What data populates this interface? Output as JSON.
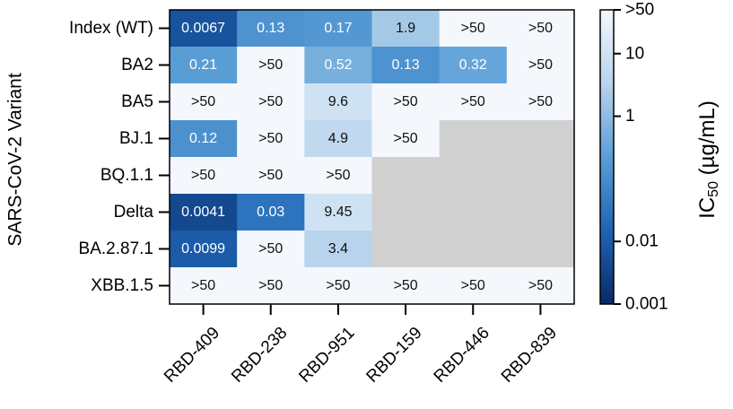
{
  "chart_data": {
    "type": "heatmap",
    "title": "",
    "ylabel": "SARS-CoV-2 Variant",
    "xlabel": "",
    "rows": [
      "Index (WT)",
      "BA2",
      "BA5",
      "BJ.1",
      "BQ.1.1",
      "Delta",
      "BA.2.87.1",
      "XBB.1.5"
    ],
    "columns": [
      "RBD-409",
      "RBD-238",
      "RBD-951",
      "RBD-159",
      "RBD-446",
      "RBD-839"
    ],
    "values": [
      [
        "0.0067",
        "0.13",
        "0.17",
        "1.9",
        ">50",
        ">50"
      ],
      [
        "0.21",
        ">50",
        "0.52",
        "0.13",
        "0.32",
        ">50"
      ],
      [
        ">50",
        ">50",
        "9.6",
        ">50",
        ">50",
        ">50"
      ],
      [
        "0.12",
        ">50",
        "4.9",
        ">50",
        null,
        null
      ],
      [
        ">50",
        ">50",
        ">50",
        null,
        null,
        null
      ],
      [
        "0.0041",
        "0.03",
        "9.45",
        null,
        null,
        null
      ],
      [
        "0.0099",
        ">50",
        "3.4",
        null,
        null,
        null
      ],
      [
        ">50",
        ">50",
        ">50",
        ">50",
        ">50",
        ">50"
      ]
    ],
    "missing_color": "#d0d0d0",
    "colorbar": {
      "label": "IC50 (µg/mL)",
      "label_main": "IC",
      "label_sub": "50",
      "label_unit": " (µg/mL)",
      "scale": "log",
      "range": [
        0.001,
        50
      ],
      "ticks": [
        {
          "value": 50,
          "label": ">50"
        },
        {
          "value": 10,
          "label": "10"
        },
        {
          "value": 1,
          "label": "1"
        },
        {
          "value": 0.01,
          "label": "0.01"
        },
        {
          "value": 0.001,
          "label": "0.001"
        }
      ],
      "colors": [
        "#0a2a66",
        "#1e64b4",
        "#5a9ed6",
        "#b8d4ec",
        "#f4f8fd"
      ]
    },
    "grid": false
  }
}
